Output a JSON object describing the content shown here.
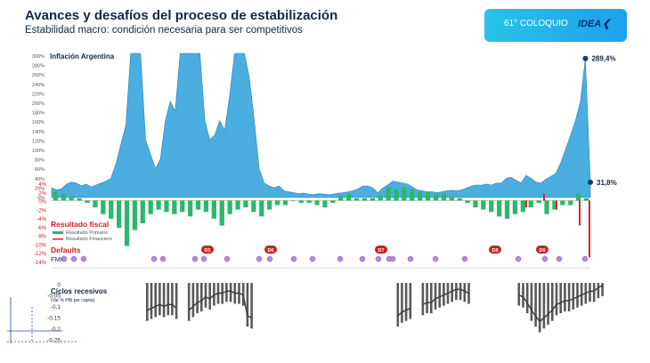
{
  "header": {
    "title": "Avances y desafíos del proceso de estabilización",
    "subtitle": "Estabilidad macro: condición necesaria para ser competitivos"
  },
  "badge": {
    "label": "61° COLOQUIO",
    "logo": "IDEA",
    "logo_icon": "chevron-left-icon",
    "colors": [
      "#27c4e8",
      "#1ea0ea"
    ]
  },
  "chart_data": [
    {
      "type": "area",
      "title": "Inflación Argentina",
      "yticks": [
        "300%",
        "280%",
        "260%",
        "240%",
        "220%",
        "200%",
        "180%",
        "160%",
        "140%",
        "120%",
        "100%",
        "80%",
        "60%",
        "40%",
        "20%",
        "0%"
      ],
      "ylim": [
        0,
        300
      ],
      "clipped": true,
      "color": "#4aaee0",
      "values": [
        20,
        16,
        18,
        28,
        32,
        30,
        24,
        28,
        22,
        26,
        30,
        34,
        40,
        70,
        110,
        150,
        300,
        300,
        300,
        120,
        90,
        60,
        80,
        160,
        200,
        180,
        300,
        300,
        300,
        300,
        300,
        160,
        120,
        130,
        160,
        140,
        210,
        300,
        300,
        300,
        250,
        160,
        60,
        30,
        24,
        20,
        24,
        14,
        12,
        10,
        8,
        9,
        7,
        6,
        8,
        7,
        6,
        7,
        9,
        10,
        12,
        14,
        18,
        24,
        24,
        20,
        10,
        20,
        26,
        34,
        32,
        30,
        28,
        22,
        16,
        14,
        12,
        12,
        10,
        12,
        14,
        15,
        14,
        16,
        20,
        24,
        26,
        26,
        28,
        26,
        30,
        30,
        40,
        42,
        36,
        30,
        46,
        40,
        32,
        30,
        38,
        44,
        50,
        72,
        100,
        130,
        160,
        200,
        289.4,
        31.8
      ],
      "annotations": [
        {
          "label": "289,4%",
          "index": 108,
          "value": 289.4
        },
        {
          "label": "31,8%",
          "index": 109,
          "value": 31.8
        }
      ],
      "marker_color": "#0e3a5e"
    },
    {
      "type": "bar",
      "title": "Resultado fiscal",
      "yticks": [
        "4%",
        "2%",
        "0%",
        "-2%",
        "-4%",
        "-6%",
        "-8%",
        "-10%",
        "-12%",
        "-14%"
      ],
      "ylim": [
        -14,
        4
      ],
      "series": [
        {
          "name": "Resultado Primario",
          "color": "#2db76a",
          "values": [
            2,
            1.5,
            1,
            0.5,
            -0.5,
            -1.5,
            -3,
            -4,
            -6,
            -10,
            -6.5,
            -5,
            -3,
            -2,
            -2.5,
            -3,
            -2.5,
            -3.5,
            -2,
            -2.5,
            -4,
            -5.5,
            -3,
            -2,
            -1.5,
            -2.5,
            -3.5,
            -2,
            -1,
            -1,
            0,
            -0.5,
            -0.5,
            -1,
            -1.5,
            -0.5,
            1,
            1.5,
            0.5,
            0.5,
            0.5,
            1,
            3,
            2.5,
            3,
            2.5,
            2,
            2,
            1.5,
            1.5,
            1,
            0.5,
            -0.5,
            -1.5,
            -2,
            -2.5,
            -3.5,
            -4,
            -3,
            -2.5,
            -1.5,
            -0.5,
            -3,
            -2,
            -1,
            -1,
            1.5,
            0.5
          ]
        },
        {
          "name": "Resultado Financiero",
          "color": "#d7262b",
          "values": [
            -1.5,
            1.5,
            -2,
            -5.5,
            -12.5
          ]
        }
      ],
      "legend": "bottom-left"
    },
    {
      "type": "scatter",
      "series": [
        {
          "name": "Defaults",
          "color": "#cc1f25",
          "labels": [
            "D5",
            "D6",
            "D7",
            "D8",
            "D9"
          ]
        },
        {
          "name": "FMI",
          "color": "#b58ae0",
          "count": 24
        }
      ]
    },
    {
      "type": "bar",
      "title": "Ciclos recesivos",
      "subtitle": "(Var % PBI per cápita)",
      "yticks": [
        "0",
        "-0.05",
        "-0.1",
        "-0.15",
        "-0.2",
        "-0.25"
      ],
      "ylim": [
        -0.3,
        0
      ],
      "color": "#58595b",
      "values": [
        -0.2,
        -0.19,
        -0.18,
        -0.17,
        -0.18,
        -0.17,
        -0.17,
        -0.19,
        -0.2,
        -0.18,
        -0.16,
        -0.15,
        -0.13,
        -0.14,
        -0.12,
        -0.11,
        -0.11,
        -0.1,
        -0.1,
        -0.11,
        -0.11,
        -0.12,
        -0.23,
        -0.24,
        -0.23,
        -0.21,
        -0.2,
        -0.19,
        -0.17,
        -0.16,
        -0.16,
        -0.14,
        -0.13,
        -0.12,
        -0.11,
        -0.1,
        -0.09,
        -0.09,
        -0.1,
        -0.11,
        -0.12,
        -0.13,
        -0.16,
        -0.2,
        -0.23,
        -0.26,
        -0.24,
        -0.22,
        -0.2,
        -0.17,
        -0.16,
        -0.15,
        -0.15,
        -0.14,
        -0.13,
        -0.12,
        -0.11,
        -0.1,
        -0.1,
        -0.08,
        -0.07,
        -0.07,
        -0.06,
        -0.05,
        -0.06,
        -0.07,
        -0.08,
        -0.09,
        -0.1,
        -0.12,
        -0.13,
        -0.15,
        -0.16,
        -0.17,
        -0.17,
        -0.17,
        -0.16,
        -0.15,
        -0.15,
        -0.14,
        -0.13,
        -0.12,
        -0.11,
        -0.1,
        -0.1,
        -0.1,
        -0.09,
        -0.08,
        -0.09,
        -0.09,
        -0.1,
        -0.12,
        -0.11,
        -0.1,
        -0.1,
        -0.1,
        -0.11,
        -0.11,
        -0.12,
        -0.13,
        -0.13,
        -0.14,
        -0.14,
        -0.15,
        -0.16,
        -0.17,
        -0.2,
        -0.22
      ],
      "slots": [
        1,
        1,
        1,
        1,
        1,
        1,
        1,
        1,
        0,
        0,
        1,
        1,
        1,
        1,
        1,
        1,
        1,
        1,
        1,
        1,
        1,
        1,
        1,
        1,
        1,
        1,
        0,
        0,
        0,
        0,
        0,
        0,
        0,
        0,
        0,
        0,
        0,
        0,
        0,
        0,
        0,
        0,
        0,
        0,
        0,
        0,
        0,
        0,
        0,
        0,
        0,
        0,
        0,
        0,
        0,
        0,
        0,
        0,
        0,
        0,
        1,
        1,
        1,
        1,
        0,
        0,
        1,
        1,
        1,
        1,
        1,
        1,
        1,
        1,
        1,
        1,
        1,
        1,
        0,
        0,
        0,
        0,
        0,
        0,
        0,
        0,
        0,
        0,
        0,
        1,
        1,
        1,
        1,
        1,
        1,
        1,
        1,
        1,
        1,
        1,
        1,
        1,
        1,
        1,
        1,
        1,
        1,
        1,
        1,
        1
      ]
    }
  ]
}
